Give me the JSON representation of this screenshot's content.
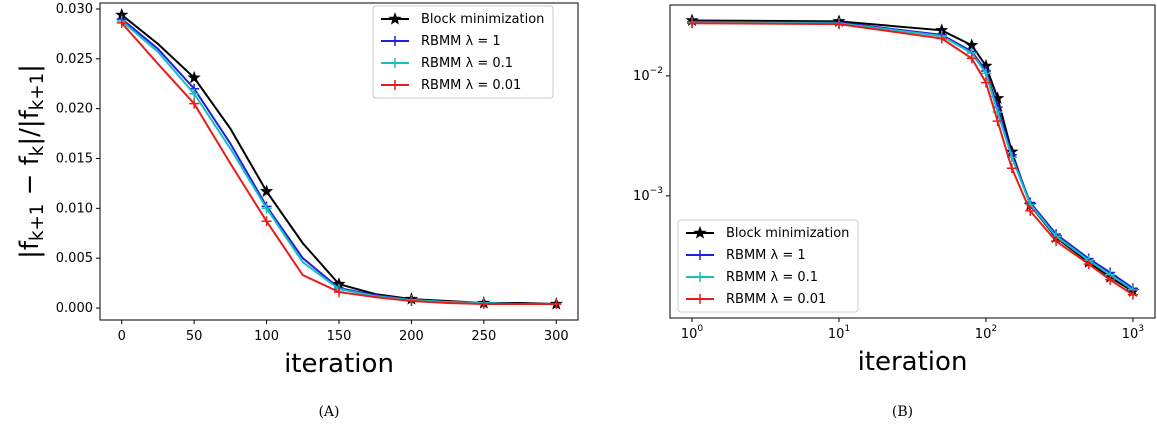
{
  "chart_data": [
    {
      "type": "line",
      "caption": "(A)",
      "xlabel": "iteration",
      "ylabel": "|f_{k+1} − f_{k}|/|f_{k+1}|",
      "x": [
        0,
        25,
        50,
        75,
        100,
        125,
        150,
        175,
        200,
        225,
        250,
        275,
        300
      ],
      "xlim": [
        -15,
        315
      ],
      "xticks": [
        0,
        50,
        100,
        150,
        200,
        250,
        300
      ],
      "ylim": [
        -0.0012,
        0.0306
      ],
      "yticks": [
        {
          "value": 0,
          "label": "0.000"
        },
        {
          "value": 0.005,
          "label": "0.005"
        },
        {
          "value": 0.01,
          "label": "0.010"
        },
        {
          "value": 0.015,
          "label": "0.015"
        },
        {
          "value": 0.02,
          "label": "0.020"
        },
        {
          "value": 0.025,
          "label": "0.025"
        },
        {
          "value": 0.03,
          "label": "0.030"
        }
      ],
      "marker_every": 2,
      "legend": "upper-right",
      "series": [
        {
          "name": "Block minimization",
          "color": "#000000",
          "marker": "star",
          "values": [
            0.0294,
            0.0265,
            0.0231,
            0.018,
            0.0117,
            0.0065,
            0.0024,
            0.0014,
            0.0009,
            0.0007,
            0.0005,
            0.0005,
            0.0004
          ]
        },
        {
          "name": "RBMM λ = 1",
          "color": "#1f1fe0",
          "marker": "plus",
          "values": [
            0.029,
            0.026,
            0.022,
            0.0165,
            0.0102,
            0.005,
            0.002,
            0.0013,
            0.0008,
            0.0006,
            0.0005,
            0.0004,
            0.0004
          ]
        },
        {
          "name": "RBMM λ = 0.1",
          "color": "#17bfbf",
          "marker": "plus",
          "values": [
            0.0288,
            0.0257,
            0.0215,
            0.016,
            0.01,
            0.0046,
            0.0019,
            0.0012,
            0.0008,
            0.0006,
            0.0005,
            0.0004,
            0.0004
          ]
        },
        {
          "name": "RBMM λ = 0.01",
          "color": "#e81c1c",
          "marker": "plus",
          "values": [
            0.0286,
            0.0245,
            0.0205,
            0.0145,
            0.0087,
            0.0033,
            0.0016,
            0.0011,
            0.0007,
            0.0005,
            0.0004,
            0.0004,
            0.0004
          ]
        }
      ]
    },
    {
      "type": "line",
      "caption": "(B)",
      "xlabel": "iteration",
      "xscale": "log",
      "yscale": "log",
      "x": [
        1,
        10,
        50,
        80,
        100,
        120,
        150,
        200,
        300,
        500,
        700,
        1000
      ],
      "xlim": [
        0.708,
        1413
      ],
      "xticks": [
        {
          "value": 1,
          "label": "10^{0}"
        },
        {
          "value": 10,
          "label": "10^{1}"
        },
        {
          "value": 100,
          "label": "10^{2}"
        },
        {
          "value": 1000,
          "label": "10^{3}"
        }
      ],
      "ylim": [
        9.6e-05,
        0.039
      ],
      "yticks": [
        {
          "value": 0.001,
          "label": "10^{−3}"
        },
        {
          "value": 0.01,
          "label": "10^{−2}"
        }
      ],
      "marker_every": 1,
      "legend": "lower-left",
      "series": [
        {
          "name": "Block minimization",
          "color": "#000000",
          "marker": "star",
          "values": [
            0.029,
            0.0285,
            0.024,
            0.018,
            0.0121,
            0.0065,
            0.00233,
            0.00084,
            0.00045,
            0.00028,
            0.00021,
            0.00016
          ]
        },
        {
          "name": "RBMM λ = 1",
          "color": "#1f1fe0",
          "marker": "plus",
          "values": [
            0.0283,
            0.0278,
            0.022,
            0.016,
            0.011,
            0.0055,
            0.0022,
            0.00088,
            0.00048,
            0.0003,
            0.00023,
            0.00017
          ]
        },
        {
          "name": "RBMM λ = 0.1",
          "color": "#17bfbf",
          "marker": "plus",
          "values": [
            0.0279,
            0.0274,
            0.0215,
            0.0155,
            0.0105,
            0.005,
            0.0021,
            0.00085,
            0.00046,
            0.00029,
            0.00022,
            0.000165
          ]
        },
        {
          "name": "RBMM λ = 0.01",
          "color": "#e81c1c",
          "marker": "plus",
          "values": [
            0.0275,
            0.027,
            0.0205,
            0.014,
            0.0088,
            0.0042,
            0.0017,
            0.00075,
            0.00042,
            0.00027,
            0.0002,
            0.00015
          ]
        }
      ]
    }
  ]
}
